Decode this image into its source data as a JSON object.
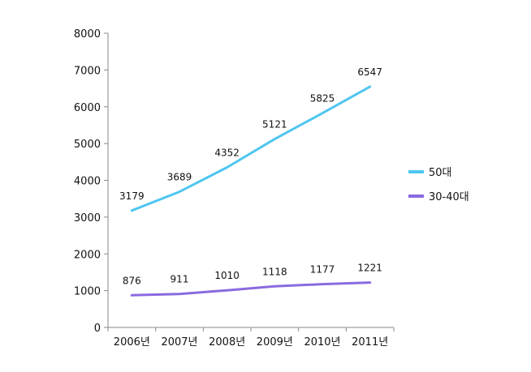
{
  "chart_data": {
    "type": "line",
    "categories": [
      "2006년",
      "2007년",
      "2008년",
      "2009년",
      "2010년",
      "2011년"
    ],
    "series": [
      {
        "name": "50대",
        "values": [
          3179,
          3689,
          4352,
          5121,
          5825,
          6547
        ],
        "color": "#4fc6f0"
      },
      {
        "name": "30-40대",
        "values": [
          876,
          911,
          1010,
          1118,
          1177,
          1221
        ],
        "color": "#8a6ae0"
      }
    ],
    "ylim": [
      0,
      8000
    ],
    "yticks": [
      0,
      1000,
      2000,
      3000,
      4000,
      5000,
      6000,
      7000,
      8000
    ],
    "grid": false,
    "legend": "right",
    "data_labels": true
  }
}
